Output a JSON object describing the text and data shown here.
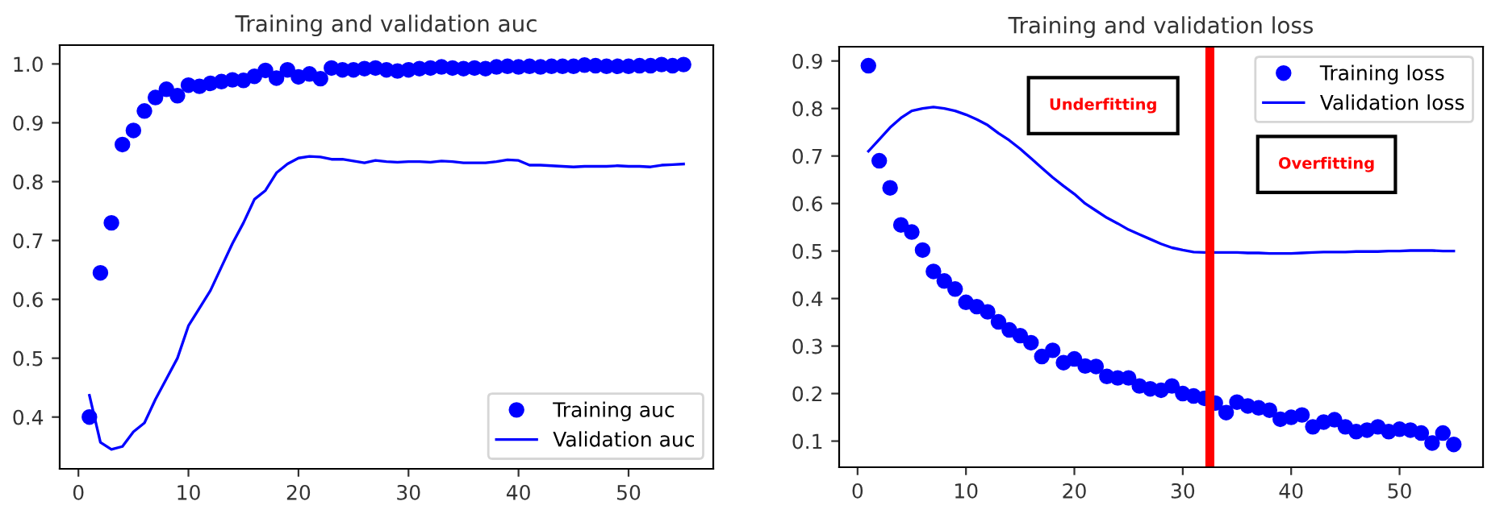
{
  "chart_data": [
    {
      "type": "line",
      "title": "Training and validation auc",
      "x": [
        1,
        2,
        3,
        4,
        5,
        6,
        7,
        8,
        9,
        10,
        11,
        12,
        13,
        14,
        15,
        16,
        17,
        18,
        19,
        20,
        21,
        22,
        23,
        24,
        25,
        26,
        27,
        28,
        29,
        30,
        31,
        32,
        33,
        34,
        35,
        36,
        37,
        38,
        39,
        40,
        41,
        42,
        43,
        44,
        45,
        46,
        47,
        48,
        49,
        50,
        51,
        52,
        53,
        54,
        55
      ],
      "xlim": [
        -1.7,
        57.7
      ],
      "xticks": [
        0,
        10,
        20,
        30,
        40,
        50
      ],
      "ylim": [
        0.312,
        1.032
      ],
      "yticks": [
        0.4,
        0.5,
        0.6,
        0.7,
        0.8,
        0.9,
        {
          "value": 1.0,
          "label": "1.0"
        }
      ],
      "grid": false,
      "legend": "lower right",
      "series": [
        {
          "name": "Training auc",
          "type": "scatter",
          "marker": "circle",
          "color": "#0000ff",
          "values": [
            0.4,
            0.645,
            0.73,
            0.863,
            0.887,
            0.92,
            0.943,
            0.957,
            0.946,
            0.964,
            0.962,
            0.967,
            0.97,
            0.973,
            0.972,
            0.979,
            0.989,
            0.976,
            0.99,
            0.978,
            0.983,
            0.975,
            0.993,
            0.99,
            0.99,
            0.992,
            0.993,
            0.99,
            0.988,
            0.99,
            0.992,
            0.993,
            0.995,
            0.993,
            0.992,
            0.993,
            0.992,
            0.995,
            0.996,
            0.995,
            0.996,
            0.995,
            0.996,
            0.996,
            0.996,
            0.998,
            0.997,
            0.996,
            0.996,
            0.996,
            0.997,
            0.997,
            0.999,
            0.997,
            0.999
          ]
        },
        {
          "name": "Validation auc",
          "color": "#0000ff",
          "values": [
            0.437,
            0.357,
            0.345,
            0.35,
            0.375,
            0.39,
            0.43,
            0.465,
            0.5,
            0.555,
            0.585,
            0.615,
            0.655,
            0.695,
            0.73,
            0.77,
            0.785,
            0.815,
            0.83,
            0.84,
            0.843,
            0.842,
            0.838,
            0.838,
            0.835,
            0.832,
            0.836,
            0.834,
            0.833,
            0.834,
            0.834,
            0.833,
            0.835,
            0.834,
            0.832,
            0.832,
            0.832,
            0.834,
            0.837,
            0.836,
            0.828,
            0.828,
            0.827,
            0.826,
            0.825,
            0.826,
            0.826,
            0.826,
            0.827,
            0.826,
            0.826,
            0.825,
            0.828,
            0.829,
            0.83
          ]
        }
      ]
    },
    {
      "type": "line",
      "title": "Training and validation loss",
      "x": [
        1,
        2,
        3,
        4,
        5,
        6,
        7,
        8,
        9,
        10,
        11,
        12,
        13,
        14,
        15,
        16,
        17,
        18,
        19,
        20,
        21,
        22,
        23,
        24,
        25,
        26,
        27,
        28,
        29,
        30,
        31,
        32,
        33,
        34,
        35,
        36,
        37,
        38,
        39,
        40,
        41,
        42,
        43,
        44,
        45,
        46,
        47,
        48,
        49,
        50,
        51,
        52,
        53,
        54,
        55
      ],
      "xlim": [
        -1.7,
        57.7
      ],
      "xticks": [
        0,
        10,
        20,
        30,
        40,
        50
      ],
      "ylim": [
        0.045,
        0.93
      ],
      "yticks": [
        0.1,
        0.2,
        0.3,
        0.4,
        0.5,
        0.6,
        0.7,
        0.8,
        0.9
      ],
      "grid": false,
      "legend": "upper right",
      "ref_lines": [
        {
          "axis": "x",
          "value": 32.5,
          "color": "#ff0000"
        }
      ],
      "annotations": [
        "Underfitting",
        "Overfitting"
      ],
      "series": [
        {
          "name": "Training loss",
          "type": "scatter",
          "marker": "circle",
          "color": "#0000ff",
          "values": [
            0.89,
            0.69,
            0.633,
            0.555,
            0.54,
            0.502,
            0.457,
            0.437,
            0.42,
            0.392,
            0.383,
            0.372,
            0.351,
            0.334,
            0.322,
            0.307,
            0.278,
            0.291,
            0.265,
            0.273,
            0.258,
            0.257,
            0.236,
            0.233,
            0.233,
            0.216,
            0.21,
            0.207,
            0.216,
            0.2,
            0.195,
            0.19,
            0.18,
            0.16,
            0.182,
            0.174,
            0.17,
            0.165,
            0.146,
            0.15,
            0.155,
            0.13,
            0.14,
            0.145,
            0.13,
            0.12,
            0.123,
            0.13,
            0.12,
            0.125,
            0.123,
            0.117,
            0.096,
            0.117,
            0.093
          ]
        },
        {
          "name": "Validation loss",
          "color": "#0000ff",
          "values": [
            0.71,
            0.735,
            0.76,
            0.78,
            0.795,
            0.8,
            0.803,
            0.8,
            0.795,
            0.787,
            0.777,
            0.765,
            0.748,
            0.733,
            0.715,
            0.695,
            0.675,
            0.655,
            0.637,
            0.62,
            0.6,
            0.585,
            0.57,
            0.558,
            0.545,
            0.535,
            0.525,
            0.515,
            0.507,
            0.502,
            0.498,
            0.497,
            0.497,
            0.497,
            0.497,
            0.496,
            0.496,
            0.495,
            0.495,
            0.495,
            0.496,
            0.497,
            0.498,
            0.498,
            0.498,
            0.499,
            0.499,
            0.499,
            0.5,
            0.5,
            0.501,
            0.501,
            0.501,
            0.5,
            0.5
          ]
        }
      ]
    }
  ]
}
